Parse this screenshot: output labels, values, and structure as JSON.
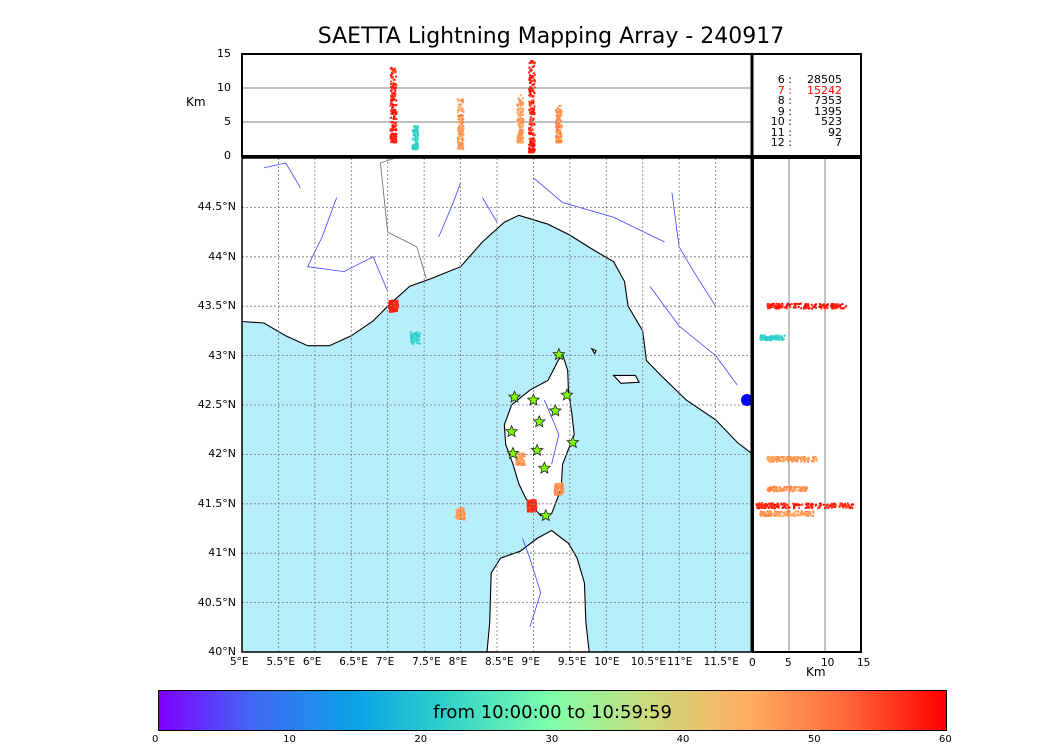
{
  "title": "SAETTA Lightning Mapping Array - 240917",
  "top_panel": {
    "ylabel": "Km",
    "ytick_labels": [
      "15",
      "10",
      "5",
      "0"
    ]
  },
  "map": {
    "lat_labels": [
      "44.5°N",
      "44°N",
      "43.5°N",
      "43°N",
      "42.5°N",
      "42°N",
      "41.5°N",
      "41°N",
      "40.5°N",
      "40°N"
    ],
    "lon_labels": [
      "5°E",
      "5.5°E",
      "6°E",
      "6.5°E",
      "7°E",
      "7.5°E",
      "8°E",
      "8.5°E",
      "9°E",
      "9.5°E",
      "10°E",
      "10.5°E",
      "11°E",
      "11.5°E"
    ]
  },
  "side_panel": {
    "xlabel": "Km",
    "xtick_labels": [
      "0",
      "5",
      "10",
      "15"
    ]
  },
  "stats": [
    {
      "key": "6 :",
      "value": "28505",
      "color": "#000000"
    },
    {
      "key": "7 :",
      "value": "15242",
      "color": "#ff0000"
    },
    {
      "key": "8 :",
      "value": "7353",
      "color": "#000000"
    },
    {
      "key": "9 :",
      "value": "1395",
      "color": "#000000"
    },
    {
      "key": "10 :",
      "value": "523",
      "color": "#000000"
    },
    {
      "key": "11 :",
      "value": "92",
      "color": "#000000"
    },
    {
      "key": "12 :",
      "value": "7",
      "color": "#000000"
    }
  ],
  "colorbar": {
    "label": "from 10:00:00 to 10:59:59",
    "tick_labels": [
      "0",
      "10",
      "20",
      "30",
      "40",
      "50",
      "60"
    ]
  },
  "colors": {
    "sea": "#b7eefc",
    "grid": "#777777",
    "rivers": "#3f3fff",
    "stars": "#7fff00"
  },
  "chart_data": {
    "type": "scatter",
    "title": "SAETTA Lightning Mapping Array - 240917",
    "xlabel": "",
    "ylabel": "",
    "xlim": [
      5,
      12
    ],
    "ylim": [
      40,
      45
    ],
    "alt_range_km": [
      0,
      15
    ],
    "color_scale_minutes": [
      0,
      60
    ],
    "clusters": [
      {
        "lon": 7.08,
        "lat": 43.5,
        "alt_min": 2.0,
        "alt_max": 13,
        "minute": 58
      },
      {
        "lon": 7.38,
        "lat": 43.18,
        "alt_min": 1.0,
        "alt_max": 4.5,
        "minute": 22
      },
      {
        "lon": 8.0,
        "lat": 41.4,
        "alt_min": 1.0,
        "alt_max": 8.5,
        "minute": 47
      },
      {
        "lon": 8.98,
        "lat": 41.48,
        "alt_min": 0.5,
        "alt_max": 14,
        "minute": 57
      },
      {
        "lon": 8.82,
        "lat": 41.95,
        "alt_min": 2.0,
        "alt_max": 9.0,
        "minute": 47
      },
      {
        "lon": 9.35,
        "lat": 41.65,
        "alt_min": 2.0,
        "alt_max": 7.5,
        "minute": 48
      }
    ],
    "stations": [
      [
        9.35,
        43.01
      ],
      [
        8.74,
        42.58
      ],
      [
        9.0,
        42.55
      ],
      [
        9.46,
        42.6
      ],
      [
        9.3,
        42.44
      ],
      [
        9.08,
        42.33
      ],
      [
        8.7,
        42.23
      ],
      [
        9.54,
        42.12
      ],
      [
        9.05,
        42.04
      ],
      [
        8.72,
        42.01
      ],
      [
        9.15,
        41.86
      ],
      [
        9.17,
        41.38
      ]
    ]
  }
}
